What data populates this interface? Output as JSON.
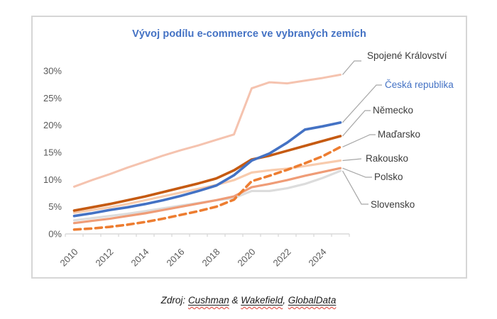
{
  "chart": {
    "title": "Vývoj podílu e-commerce ve vybraných zemích",
    "title_color": "#4472C4"
  },
  "colors": {
    "axis_line": "#d9d9d9",
    "tick_label": "#595959",
    "leader_line": "#a6a6a6",
    "frame_border": "#d6d6d6"
  },
  "source": {
    "prefix": "Zdroj: ",
    "word1": "Cushman",
    "amp": " & ",
    "word2": "Wakefield",
    "comma": ", ",
    "word3": "GlobalData"
  },
  "chart_data": {
    "type": "line",
    "title": "Vývoj podílu e-commerce ve vybraných zemích",
    "x": [
      2010,
      2011,
      2012,
      2013,
      2014,
      2015,
      2016,
      2017,
      2018,
      2019,
      2020,
      2021,
      2022,
      2023,
      2024,
      2025
    ],
    "x_tick_labels": [
      "2010",
      "2012",
      "2014",
      "2016",
      "2018",
      "2020",
      "2022",
      "2024"
    ],
    "y_tick_labels": [
      "0%",
      "5%",
      "10%",
      "15%",
      "20%",
      "25%",
      "30%"
    ],
    "ylim": [
      0,
      30
    ],
    "gridlines": false,
    "legend_position": "right-labels",
    "series": [
      {
        "name": "Spojené Království",
        "color": "#F5C3AF",
        "label_color": "#3b3b3b",
        "dash": false,
        "width": 3,
        "values": [
          8.7,
          9.9,
          11.0,
          12.2,
          13.3,
          14.4,
          15.4,
          16.3,
          17.3,
          18.3,
          26.8,
          27.9,
          27.7,
          28.2,
          28.7,
          29.3
        ]
      },
      {
        "name": "Česká republika",
        "color": "#4472C4",
        "label_color": "#4472C4",
        "dash": false,
        "width": 3.6,
        "values": [
          3.3,
          3.8,
          4.4,
          4.9,
          5.5,
          6.2,
          7.0,
          7.9,
          8.9,
          10.8,
          13.5,
          14.8,
          16.8,
          19.2,
          19.8,
          20.5
        ]
      },
      {
        "name": "Německo",
        "color": "#C55A11",
        "label_color": "#3b3b3b",
        "dash": false,
        "width": 3.6,
        "values": [
          4.3,
          4.9,
          5.5,
          6.2,
          6.9,
          7.7,
          8.5,
          9.3,
          10.2,
          11.7,
          13.7,
          14.4,
          15.3,
          16.2,
          17.1,
          18.0
        ]
      },
      {
        "name": "Maďarsko",
        "color": "#ED7D31",
        "label_color": "#3b3b3b",
        "dash": true,
        "width": 3.6,
        "values": [
          0.8,
          1.0,
          1.3,
          1.7,
          2.2,
          2.8,
          3.5,
          4.2,
          5.0,
          6.3,
          9.7,
          10.7,
          11.8,
          13.0,
          14.3,
          16.0
        ]
      },
      {
        "name": "Rakousko",
        "color": "#F8CBAD",
        "label_color": "#3b3b3b",
        "dash": false,
        "width": 3.2,
        "values": [
          3.9,
          4.4,
          4.9,
          5.5,
          6.2,
          6.9,
          7.6,
          8.3,
          9.0,
          9.9,
          11.3,
          11.7,
          12.0,
          12.5,
          13.0,
          13.5
        ]
      },
      {
        "name": "Polsko",
        "color": "#EF9C77",
        "label_color": "#3b3b3b",
        "dash": false,
        "width": 3.2,
        "values": [
          2.0,
          2.4,
          2.8,
          3.3,
          3.8,
          4.4,
          5.0,
          5.6,
          6.2,
          6.9,
          8.6,
          9.2,
          9.9,
          10.7,
          11.4,
          12.1
        ]
      },
      {
        "name": "Slovensko",
        "color": "#DCDCDC",
        "label_color": "#3b3b3b",
        "dash": false,
        "width": 3.2,
        "values": [
          2.5,
          2.9,
          3.3,
          3.7,
          4.2,
          4.7,
          5.2,
          5.7,
          6.2,
          6.6,
          7.9,
          7.9,
          8.4,
          9.2,
          10.3,
          11.6
        ]
      }
    ]
  }
}
